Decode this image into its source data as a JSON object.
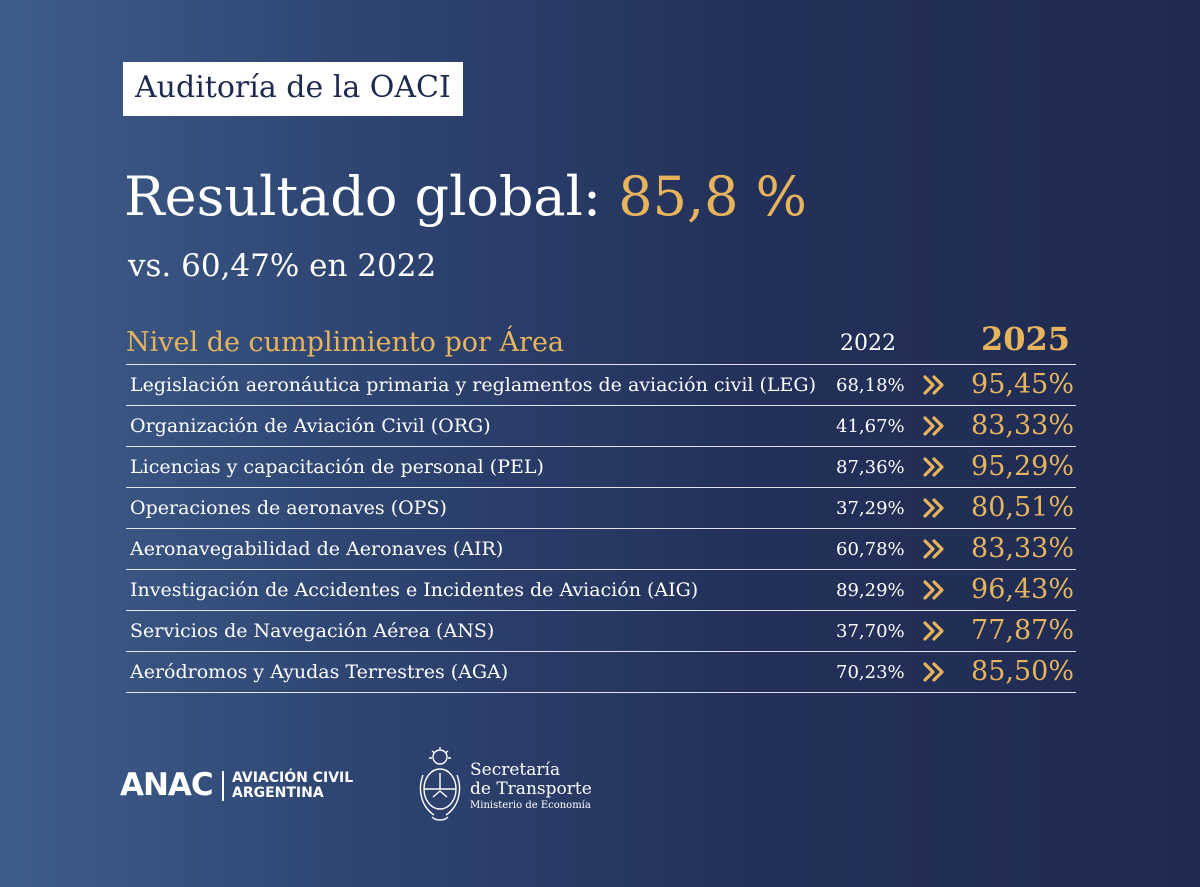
{
  "badge": "Auditoría de la OACI",
  "headline": {
    "prefix": "Resultado global: ",
    "value": "85,8 %"
  },
  "subline": "vs. 60,47% en 2022",
  "table": {
    "area_title": "Nivel de cumplimiento por Área",
    "col_2022": "2022",
    "col_2025": "2025",
    "rows": [
      {
        "label": "Legislación aeronáutica primaria y reglamentos de aviación civil (LEG)",
        "v2022": "68,18%",
        "v2025": "95,45%"
      },
      {
        "label": "Organización de Aviación Civil (ORG)",
        "v2022": "41,67%",
        "v2025": "83,33%"
      },
      {
        "label": "Licencias y capacitación de personal (PEL)",
        "v2022": "87,36%",
        "v2025": "95,29%"
      },
      {
        "label": "Operaciones de aeronaves (OPS)",
        "v2022": "37,29%",
        "v2025": "80,51%"
      },
      {
        "label": "Aeronavegabilidad de Aeronaves (AIR)",
        "v2022": "60,78%",
        "v2025": "83,33%"
      },
      {
        "label": "Investigación de Accidentes e Incidentes de Aviación (AIG)",
        "v2022": "89,29%",
        "v2025": "96,43%"
      },
      {
        "label": "Servicios de Navegación Aérea (ANS)",
        "v2022": "37,70%",
        "v2025": "77,87%"
      },
      {
        "label": "Aeródromos y Ayudas Terrestres (AGA)",
        "v2022": "70,23%",
        "v2025": "85,50%"
      }
    ]
  },
  "footer": {
    "anac": "ANAC",
    "anac_sub_line1": "AVIACIÓN CIVIL",
    "anac_sub_line2": "ARGENTINA",
    "sec_line1": "Secretaría",
    "sec_line2": "de Transporte",
    "sec_line3": "Ministerio de Economía"
  },
  "icons": {
    "row_arrow": "double-chevron-right-icon",
    "seal": "national-seal-icon"
  },
  "colors": {
    "accent": "#e7b45e",
    "background": "#23315a",
    "text": "#ffffff"
  }
}
